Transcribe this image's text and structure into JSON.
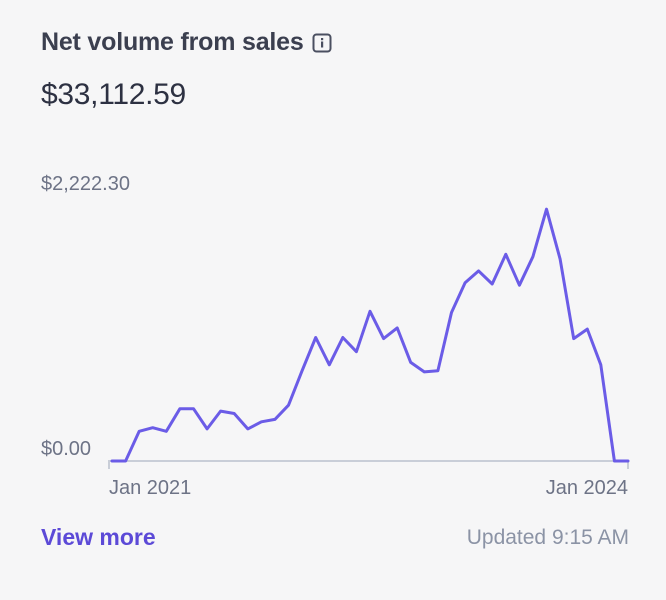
{
  "header": {
    "title": "Net volume from sales",
    "info_icon": "info-icon",
    "amount": "$33,112.59"
  },
  "chart_data": {
    "type": "line",
    "title": "",
    "y_max_label": "$2,222.30",
    "y_min_label": "$0.00",
    "ylim": [
      0,
      2222.3
    ],
    "x_tick_labels": [
      "Jan 2021",
      "Jan 2024"
    ],
    "x_range": [
      "2020-12",
      "2024-02"
    ],
    "color": "#6b5ce7",
    "series": [
      {
        "x": [
          "2020-12",
          "2021-01",
          "2021-02",
          "2021-03",
          "2021-04",
          "2021-05",
          "2021-06",
          "2021-07",
          "2021-08",
          "2021-09",
          "2021-10",
          "2021-11",
          "2021-12",
          "2022-01",
          "2022-02",
          "2022-03",
          "2022-04",
          "2022-05",
          "2022-06",
          "2022-07",
          "2022-08",
          "2022-09",
          "2022-10",
          "2022-11",
          "2022-12",
          "2023-01",
          "2023-02",
          "2023-03",
          "2023-04",
          "2023-05",
          "2023-06",
          "2023-07",
          "2023-08",
          "2023-09",
          "2023-10",
          "2023-11",
          "2023-12",
          "2024-01",
          "2024-02"
        ],
        "values": [
          0,
          0,
          250,
          280,
          250,
          440,
          440,
          270,
          420,
          400,
          270,
          330,
          350,
          470,
          760,
          1040,
          810,
          1040,
          920,
          1260,
          1030,
          1120,
          830,
          750,
          760,
          1250,
          1500,
          1600,
          1490,
          1740,
          1480,
          1720,
          2120,
          1700,
          1030,
          1110,
          810,
          0,
          0
        ]
      }
    ]
  },
  "footer": {
    "view_more": "View more",
    "updated": "Updated 9:15 AM"
  }
}
